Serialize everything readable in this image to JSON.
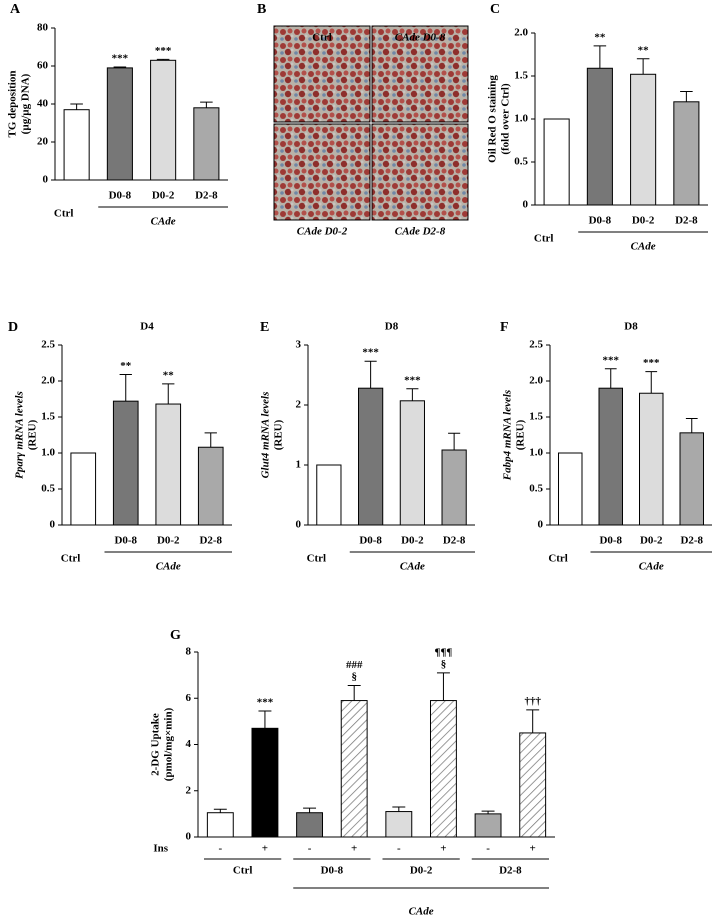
{
  "chart_data": [
    {
      "type": "bar",
      "panel": "A",
      "y_label": [
        "TG deposition",
        "(µg/µg DNA)"
      ],
      "categories": [
        "Ctrl",
        "D0-8",
        "D0-2",
        "D2-8"
      ],
      "values": [
        37,
        59,
        63,
        38
      ],
      "errors": [
        3,
        0.5,
        0.5,
        3
      ],
      "colors": [
        "#ffffff",
        "#777777",
        "#dcdcdc",
        "#a9a9a9"
      ],
      "annotations": [
        null,
        [
          "***"
        ],
        [
          "***"
        ],
        null
      ],
      "group_label": "CAde",
      "ylim": [
        0,
        80
      ],
      "yticks": [
        0,
        20,
        40,
        60,
        80
      ]
    },
    {
      "type": "bar",
      "panel": "C",
      "y_label": [
        "Oil Red O staining",
        "(fold over Ctrl)"
      ],
      "categories": [
        "Ctrl",
        "D0-8",
        "D0-2",
        "D2-8"
      ],
      "values": [
        1.0,
        1.59,
        1.52,
        1.2
      ],
      "errors": [
        0,
        0.26,
        0.18,
        0.12
      ],
      "colors": [
        "#ffffff",
        "#777777",
        "#dcdcdc",
        "#a9a9a9"
      ],
      "annotations": [
        null,
        [
          "**"
        ],
        [
          "**"
        ],
        null
      ],
      "group_label": "CAde",
      "ylim": [
        0,
        2
      ],
      "yticks": [
        0,
        0.5,
        {
          "value": 1,
          "label": "1.0"
        },
        1.5,
        {
          "value": 2,
          "label": "2.0"
        }
      ]
    },
    {
      "type": "bar",
      "panel": "D",
      "title": "D4",
      "y_label": [
        "Pparγ mRNA levels",
        "(REU)"
      ],
      "categories": [
        "Ctrl",
        "D0-8",
        "D0-2",
        "D2-8"
      ],
      "values": [
        1.0,
        1.72,
        1.68,
        1.08
      ],
      "errors": [
        0,
        0.37,
        0.28,
        0.2
      ],
      "colors": [
        "#ffffff",
        "#777777",
        "#dcdcdc",
        "#a9a9a9"
      ],
      "annotations": [
        null,
        [
          "**"
        ],
        [
          "**"
        ],
        null
      ],
      "group_label": "CAde",
      "ylim": [
        0,
        2.5
      ],
      "yticks": [
        0,
        0.5,
        {
          "value": 1,
          "label": "1.0"
        },
        1.5,
        {
          "value": 2,
          "label": "2.0"
        },
        2.5
      ]
    },
    {
      "type": "bar",
      "panel": "E",
      "title": "D8",
      "y_label": [
        "Glut4 mRNA levels",
        "(REU)"
      ],
      "categories": [
        "Ctrl",
        "D0-8",
        "D0-2",
        "D2-8"
      ],
      "values": [
        1.0,
        2.28,
        2.07,
        1.25
      ],
      "errors": [
        0,
        0.45,
        0.2,
        0.28
      ],
      "colors": [
        "#ffffff",
        "#777777",
        "#dcdcdc",
        "#a9a9a9"
      ],
      "annotations": [
        null,
        [
          "***"
        ],
        [
          "***"
        ],
        null
      ],
      "group_label": "CAde",
      "ylim": [
        0,
        3
      ],
      "yticks": [
        0,
        1,
        2,
        3
      ]
    },
    {
      "type": "bar",
      "panel": "F",
      "title": "D8",
      "y_label": [
        "Fabp4 mRNA levels",
        "(REU)"
      ],
      "categories": [
        "Ctrl",
        "D0-8",
        "D0-2",
        "D2-8"
      ],
      "values": [
        1.0,
        1.9,
        1.83,
        1.28
      ],
      "errors": [
        0,
        0.27,
        0.3,
        0.2
      ],
      "colors": [
        "#ffffff",
        "#777777",
        "#dcdcdc",
        "#a9a9a9"
      ],
      "annotations": [
        null,
        [
          "***"
        ],
        [
          "***"
        ],
        null
      ],
      "group_label": "CAde",
      "ylim": [
        0,
        2.5
      ],
      "yticks": [
        0,
        0.5,
        {
          "value": 1,
          "label": "1.0"
        },
        1.5,
        {
          "value": 2,
          "label": "2.0"
        },
        2.5
      ]
    },
    {
      "type": "grouped-bar",
      "panel": "G",
      "y_label": [
        "2-DG Uptake",
        "(pmol/mg×min)"
      ],
      "row_label": "Ins",
      "categories": [
        "-",
        "+",
        "-",
        "+",
        "-",
        "+",
        "-",
        "+"
      ],
      "groups": [
        "Ctrl",
        "D0-8",
        "D0-2",
        "D2-8"
      ],
      "values": [
        1.05,
        4.7,
        1.05,
        5.9,
        1.1,
        5.9,
        1.0,
        4.5
      ],
      "errors": [
        0.15,
        0.75,
        0.2,
        0.65,
        0.2,
        1.2,
        0.12,
        1.0
      ],
      "colors": [
        "#ffffff",
        "#000000",
        "#777777",
        "#ffffff",
        "#dcdcdc",
        "#ffffff",
        "#a9a9a9",
        "#ffffff"
      ],
      "hatched": [
        false,
        false,
        false,
        true,
        false,
        true,
        false,
        true
      ],
      "annotations": [
        null,
        [
          "***"
        ],
        null,
        [
          "###",
          "§"
        ],
        null,
        [
          "¶¶¶",
          "§"
        ],
        null,
        [
          "†††"
        ]
      ],
      "group_label": "CAde",
      "ylim": [
        0,
        8
      ],
      "yticks": [
        0,
        2,
        4,
        6,
        8
      ]
    }
  ],
  "image_panel": {
    "panel": "B",
    "labels": [
      "Ctrl",
      "CAde D0-8",
      "CAde D0-2",
      "CAde D2-8"
    ]
  }
}
